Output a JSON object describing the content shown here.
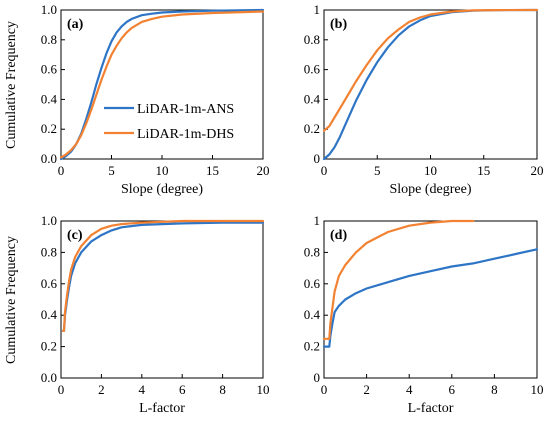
{
  "figure": {
    "y_axis_title": "Cumulative Frequency"
  },
  "legend": {
    "entries": [
      {
        "name": "LiDAR-1m-ANS",
        "color": "#2E75C6"
      },
      {
        "name": "LiDAR-1m-DHS",
        "color": "#F28232"
      }
    ],
    "placement": "inside panel (a), center-right"
  },
  "chart_data": [
    {
      "type": "line",
      "panel": "(a)",
      "xlabel": "Slope (degree)",
      "ylabel": "Cumulative Frequency",
      "xlim": [
        0,
        20
      ],
      "ylim": [
        0,
        1.0
      ],
      "xticks": [
        "0",
        "5",
        "10",
        "15",
        "20"
      ],
      "yticks": [
        "0.0",
        "0.2",
        "0.4",
        "0.6",
        "0.8",
        "1.0"
      ],
      "series": [
        {
          "name": "LiDAR-1m-ANS",
          "color": "#2E75C6",
          "x": [
            0,
            0.5,
            1,
            1.5,
            2,
            2.5,
            3,
            3.5,
            4,
            4.5,
            5,
            5.5,
            6,
            6.5,
            7,
            8,
            9,
            10,
            12,
            15,
            20
          ],
          "y": [
            0.0,
            0.02,
            0.05,
            0.1,
            0.17,
            0.27,
            0.38,
            0.5,
            0.61,
            0.71,
            0.79,
            0.85,
            0.89,
            0.92,
            0.94,
            0.965,
            0.975,
            0.983,
            0.99,
            0.995,
            1.0
          ]
        },
        {
          "name": "LiDAR-1m-DHS",
          "color": "#F28232",
          "x": [
            0,
            0.5,
            1,
            1.5,
            2,
            2.5,
            3,
            3.5,
            4,
            4.5,
            5,
            5.5,
            6,
            6.5,
            7,
            8,
            9,
            10,
            12,
            15,
            20
          ],
          "y": [
            0.01,
            0.03,
            0.06,
            0.1,
            0.16,
            0.24,
            0.33,
            0.43,
            0.53,
            0.62,
            0.7,
            0.76,
            0.81,
            0.85,
            0.88,
            0.92,
            0.94,
            0.955,
            0.97,
            0.98,
            0.99
          ]
        }
      ]
    },
    {
      "type": "line",
      "panel": "(b)",
      "xlabel": "Slope (degree)",
      "ylabel": "",
      "xlim": [
        0,
        20
      ],
      "ylim": [
        0,
        1.0
      ],
      "xticks": [
        "0",
        "5",
        "10",
        "15",
        "20"
      ],
      "yticks": [
        "0",
        "0.2",
        "0.4",
        "0.6",
        "0.8",
        "1"
      ],
      "series": [
        {
          "name": "LiDAR-1m-ANS",
          "color": "#2E75C6",
          "x": [
            0,
            0.5,
            1,
            1.5,
            2,
            2.5,
            3,
            4,
            5,
            6,
            7,
            8,
            9,
            10,
            12,
            14,
            16,
            20
          ],
          "y": [
            0.0,
            0.03,
            0.08,
            0.15,
            0.23,
            0.31,
            0.39,
            0.53,
            0.65,
            0.75,
            0.83,
            0.89,
            0.93,
            0.96,
            0.985,
            0.995,
            0.999,
            1.0
          ]
        },
        {
          "name": "LiDAR-1m-DHS",
          "color": "#F28232",
          "x": [
            0,
            0.5,
            1,
            1.5,
            2,
            2.5,
            3,
            4,
            5,
            6,
            7,
            8,
            9,
            10,
            12,
            14,
            16,
            20
          ],
          "y": [
            0.19,
            0.22,
            0.28,
            0.34,
            0.4,
            0.46,
            0.52,
            0.63,
            0.73,
            0.81,
            0.87,
            0.92,
            0.95,
            0.97,
            0.99,
            0.997,
            0.999,
            1.0
          ]
        }
      ]
    },
    {
      "type": "line",
      "panel": "(c)",
      "xlabel": "L-factor",
      "ylabel": "Cumulative Frequency",
      "xlim": [
        0,
        10
      ],
      "ylim": [
        0,
        1.0
      ],
      "xticks": [
        "0",
        "2",
        "4",
        "6",
        "8",
        "10"
      ],
      "yticks": [
        "0.0",
        "0.2",
        "0.4",
        "0.6",
        "0.8",
        "1.0"
      ],
      "series": [
        {
          "name": "LiDAR-1m-ANS",
          "color": "#2E75C6",
          "x": [
            0.1,
            0.15,
            0.2,
            0.3,
            0.4,
            0.5,
            0.7,
            1.0,
            1.5,
            2,
            2.5,
            3,
            4,
            5,
            6,
            8,
            10
          ],
          "y": [
            0.3,
            0.3,
            0.4,
            0.5,
            0.58,
            0.65,
            0.73,
            0.8,
            0.87,
            0.91,
            0.94,
            0.96,
            0.975,
            0.98,
            0.985,
            0.99,
            0.99
          ]
        },
        {
          "name": "LiDAR-1m-DHS",
          "color": "#F28232",
          "x": [
            0.1,
            0.15,
            0.2,
            0.3,
            0.4,
            0.5,
            0.7,
            1.0,
            1.5,
            2,
            2.5,
            3,
            4,
            5,
            6,
            8,
            10
          ],
          "y": [
            0.3,
            0.3,
            0.42,
            0.53,
            0.62,
            0.69,
            0.77,
            0.84,
            0.91,
            0.95,
            0.97,
            0.98,
            0.99,
            0.995,
            1.0,
            1.0,
            1.0
          ]
        }
      ]
    },
    {
      "type": "line",
      "panel": "(d)",
      "xlabel": "L-factor",
      "ylabel": "",
      "xlim": [
        0,
        10
      ],
      "ylim": [
        0,
        1.0
      ],
      "xticks": [
        "0",
        "2",
        "4",
        "6",
        "8",
        "10"
      ],
      "yticks": [
        "0",
        "0.2",
        "0.4",
        "0.6",
        "0.8",
        "1"
      ],
      "series": [
        {
          "name": "LiDAR-1m-ANS",
          "color": "#2E75C6",
          "x": [
            0,
            0.25,
            0.3,
            0.4,
            0.5,
            0.7,
            1.0,
            1.5,
            2,
            3,
            4,
            5,
            6,
            7,
            8,
            9,
            10
          ],
          "y": [
            0.2,
            0.2,
            0.27,
            0.35,
            0.42,
            0.46,
            0.5,
            0.54,
            0.57,
            0.61,
            0.65,
            0.68,
            0.71,
            0.73,
            0.76,
            0.79,
            0.82
          ]
        },
        {
          "name": "LiDAR-1m-DHS",
          "color": "#F28232",
          "x": [
            0,
            0.25,
            0.3,
            0.4,
            0.5,
            0.7,
            1.0,
            1.5,
            2,
            3,
            4,
            5,
            6,
            7
          ],
          "y": [
            0.25,
            0.25,
            0.35,
            0.45,
            0.55,
            0.65,
            0.72,
            0.8,
            0.86,
            0.93,
            0.97,
            0.99,
            1.0,
            1.0
          ]
        }
      ]
    }
  ]
}
